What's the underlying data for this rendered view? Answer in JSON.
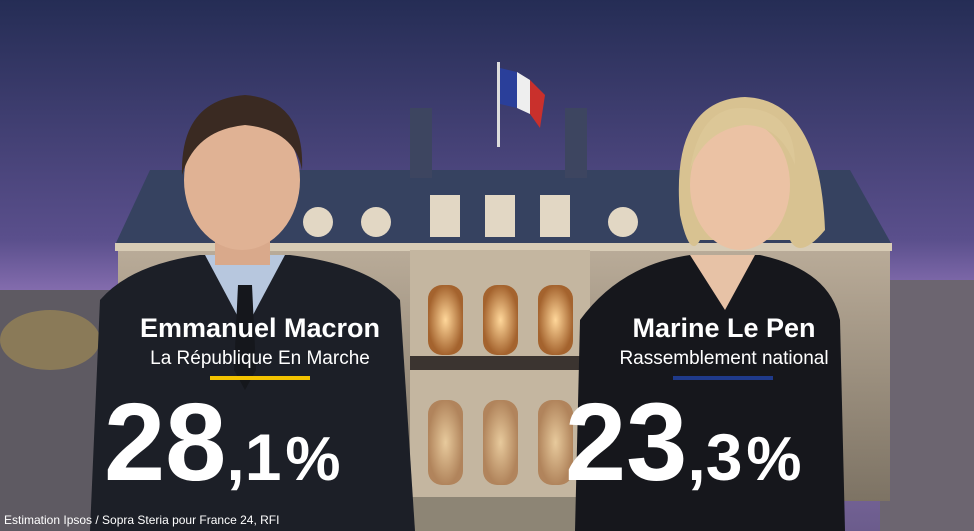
{
  "candidates": [
    {
      "name": "Emmanuel Macron",
      "party": "La République En Marche",
      "result": {
        "whole": "28",
        "decimal": ",1",
        "unit": "%"
      }
    },
    {
      "name": "Marine Le Pen",
      "party": "Rassemblement national",
      "result": {
        "whole": "23",
        "decimal": ",3",
        "unit": "%"
      }
    }
  ],
  "source": "Estimation Ipsos / Sopra Steria pour France 24, RFI"
}
